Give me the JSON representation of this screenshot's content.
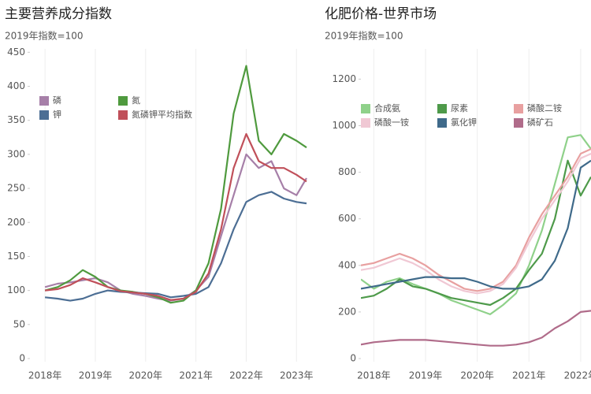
{
  "chart_data": [
    {
      "type": "line",
      "title": "主要营养成分指数",
      "subtitle": "2019年指数=100",
      "x": [
        2018,
        2018.25,
        2018.5,
        2018.75,
        2019,
        2019.25,
        2019.5,
        2019.75,
        2020,
        2020.25,
        2020.5,
        2020.75,
        2021,
        2021.25,
        2021.5,
        2021.75,
        2022,
        2022.25,
        2022.5,
        2022.75,
        2023,
        2023.2
      ],
      "xlim": [
        2017.7,
        2023.45
      ],
      "xticks": [
        {
          "value": 2018,
          "label": "2018年"
        },
        {
          "value": 2019,
          "label": "2019年"
        },
        {
          "value": 2020,
          "label": "2020年"
        },
        {
          "value": 2021,
          "label": "2021年"
        },
        {
          "value": 2022,
          "label": "2022年"
        },
        {
          "value": 2023,
          "label": "2023年"
        }
      ],
      "ylim": [
        0,
        455
      ],
      "yticks": [
        0,
        50,
        100,
        150,
        200,
        250,
        300,
        350,
        400,
        450
      ],
      "legend": "upper left",
      "series": [
        {
          "name": "磷",
          "color": "#a67fa8",
          "values": [
            105,
            110,
            112,
            115,
            118,
            112,
            100,
            95,
            92,
            88,
            85,
            88,
            100,
            120,
            180,
            240,
            300,
            280,
            290,
            250,
            240,
            265
          ]
        },
        {
          "name": "氮",
          "color": "#4f9a3e",
          "values": [
            100,
            105,
            115,
            130,
            120,
            105,
            100,
            98,
            95,
            90,
            82,
            85,
            100,
            140,
            220,
            360,
            430,
            320,
            300,
            330,
            320,
            310
          ]
        },
        {
          "name": "钾",
          "color": "#4c6e94",
          "values": [
            90,
            88,
            85,
            88,
            95,
            100,
            98,
            97,
            96,
            95,
            90,
            92,
            95,
            105,
            140,
            190,
            230,
            240,
            245,
            235,
            230,
            228
          ]
        },
        {
          "name": "氮磷钾平均指数",
          "color": "#c0505a",
          "values": [
            100,
            102,
            108,
            118,
            112,
            105,
            99,
            97,
            95,
            92,
            86,
            88,
            98,
            125,
            190,
            280,
            330,
            290,
            280,
            280,
            270,
            260
          ]
        }
      ]
    },
    {
      "type": "line",
      "title": "化肥价格-世界市场",
      "subtitle": "2019年指数=100",
      "x": [
        2017.75,
        2018,
        2018.25,
        2018.5,
        2018.75,
        2019,
        2019.25,
        2019.5,
        2019.75,
        2020,
        2020.25,
        2020.5,
        2020.75,
        2021,
        2021.25,
        2021.5,
        2021.75,
        2022,
        2022.2
      ],
      "xlim": [
        2017.75,
        2022.2
      ],
      "xticks": [
        {
          "value": 2018,
          "label": "2018年"
        },
        {
          "value": 2019,
          "label": "2019年"
        },
        {
          "value": 2020,
          "label": "2020年"
        },
        {
          "value": 2021,
          "label": "2021年"
        },
        {
          "value": 2022,
          "label": "2022年"
        }
      ],
      "ylim": [
        0,
        1330
      ],
      "yticks": [
        0,
        200,
        400,
        600,
        800,
        1000,
        1200
      ],
      "legend": "upper left",
      "series": [
        {
          "name": "合成氨",
          "color": "#8fd18a",
          "values": [
            340,
            300,
            330,
            345,
            320,
            300,
            280,
            250,
            230,
            210,
            190,
            230,
            280,
            400,
            550,
            750,
            950,
            960,
            900
          ]
        },
        {
          "name": "尿素",
          "color": "#4e9a4a",
          "values": [
            260,
            270,
            300,
            340,
            310,
            300,
            280,
            260,
            250,
            240,
            230,
            260,
            300,
            380,
            450,
            600,
            850,
            700,
            780
          ]
        },
        {
          "name": "磷酸二铵",
          "color": "#e8a0a0",
          "values": [
            400,
            410,
            430,
            450,
            430,
            400,
            360,
            330,
            300,
            290,
            300,
            330,
            400,
            520,
            620,
            700,
            780,
            880,
            900
          ]
        },
        {
          "name": "磷酸一铵",
          "color": "#f0c8d4",
          "values": [
            380,
            390,
            410,
            430,
            410,
            380,
            340,
            310,
            290,
            280,
            290,
            320,
            390,
            500,
            600,
            680,
            760,
            860,
            880
          ]
        },
        {
          "name": "氯化钾",
          "color": "#3f6a8a",
          "values": [
            300,
            310,
            320,
            330,
            340,
            350,
            350,
            345,
            345,
            330,
            310,
            300,
            300,
            310,
            340,
            420,
            560,
            820,
            850
          ]
        },
        {
          "name": "磷矿石",
          "color": "#b06c8a",
          "values": [
            60,
            70,
            75,
            80,
            80,
            80,
            75,
            70,
            65,
            60,
            55,
            55,
            60,
            70,
            90,
            130,
            160,
            200,
            205
          ]
        }
      ]
    }
  ]
}
